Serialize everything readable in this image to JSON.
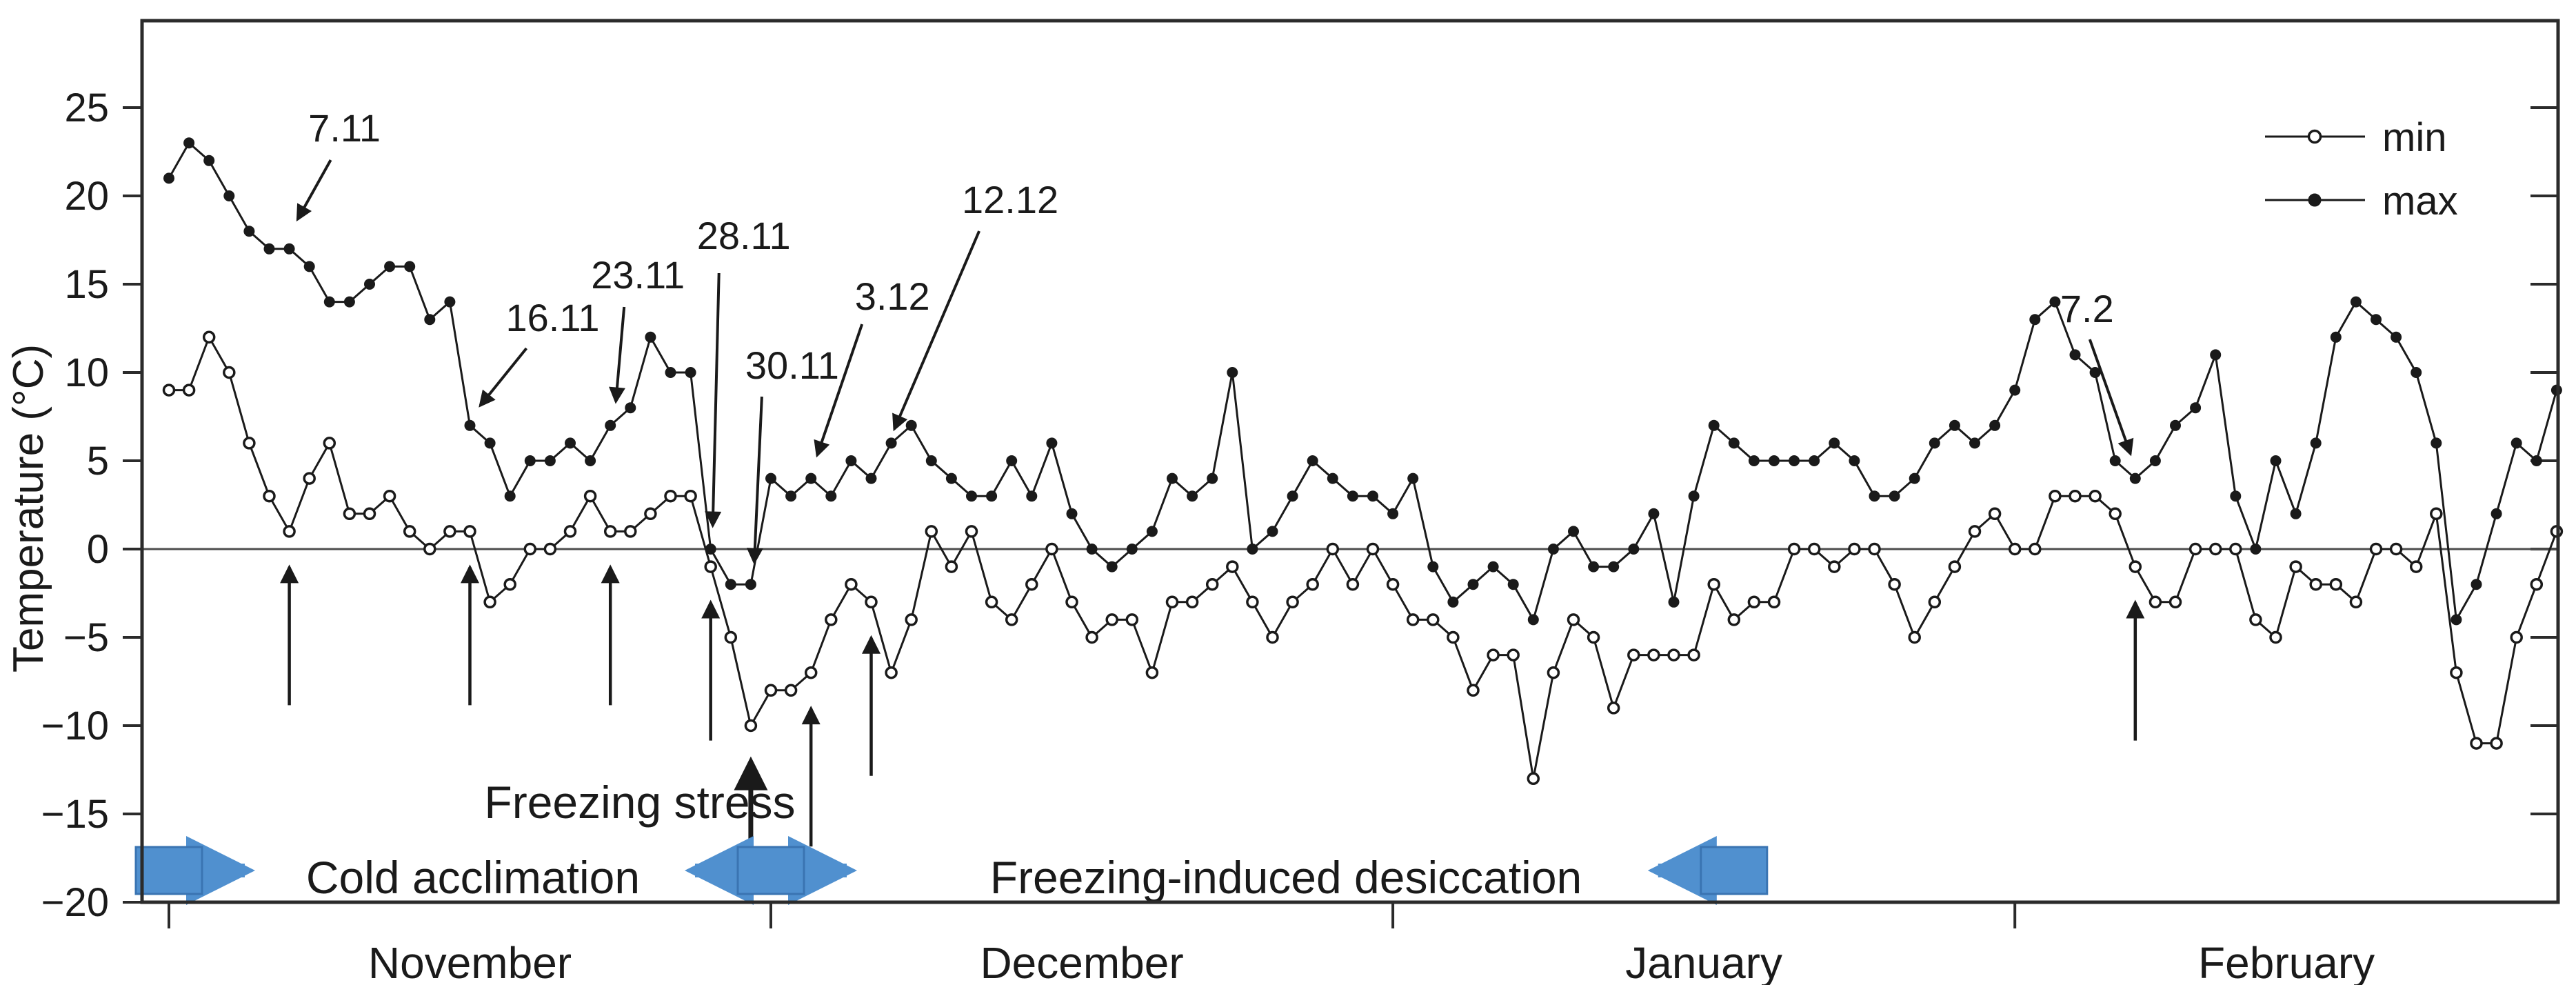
{
  "chart_data": {
    "type": "line",
    "title": "",
    "ylabel": "Temperature (°C)",
    "ylim": [
      -20,
      30
    ],
    "yticks": [
      25,
      20,
      15,
      10,
      5,
      0,
      -5,
      -10,
      -15,
      -20
    ],
    "zero_line": 0,
    "grid": "off",
    "x_months": [
      "November",
      "December",
      "January",
      "February"
    ],
    "month_lengths": [
      30,
      31,
      31,
      28
    ],
    "legend": {
      "position": "top-right",
      "items": [
        {
          "label": "min",
          "marker": "open-circle"
        },
        {
          "label": "max",
          "marker": "filled-circle"
        }
      ]
    },
    "series": [
      {
        "name": "min",
        "marker": "open-circle",
        "color": "#1a1a1a",
        "values": [
          9,
          9,
          12,
          10,
          6,
          3,
          1,
          4,
          6,
          2,
          2,
          3,
          1,
          0,
          1,
          1,
          -3,
          -2,
          0,
          0,
          1,
          3,
          1,
          1,
          2,
          3,
          3,
          -1,
          -5,
          -10,
          -8,
          -8,
          -7,
          -4,
          -2,
          -3,
          -7,
          -4,
          1,
          -1,
          1,
          -3,
          -4,
          -2,
          0,
          -3,
          -5,
          -4,
          -4,
          -7,
          -3,
          -3,
          -2,
          -1,
          -3,
          -5,
          -3,
          -2,
          0,
          -2,
          0,
          -2,
          -4,
          -4,
          -5,
          -8,
          -6,
          -6,
          -13,
          -7,
          -4,
          -5,
          -9,
          -6,
          -6,
          -6,
          -6,
          -2,
          -4,
          -3,
          -3,
          0,
          0,
          -1,
          0,
          0,
          -2,
          -5,
          -3,
          -1,
          1,
          2,
          0,
          0,
          3,
          3,
          3,
          2,
          -1,
          -3,
          -3,
          0,
          0,
          0,
          -4,
          -5,
          -1,
          -2,
          -2,
          -3,
          0,
          0,
          -1,
          2,
          -7,
          -11,
          -11,
          -5,
          -2,
          1
        ]
      },
      {
        "name": "max",
        "marker": "filled-circle",
        "color": "#1a1a1a",
        "values": [
          21,
          23,
          22,
          20,
          18,
          17,
          17,
          16,
          14,
          14,
          15,
          16,
          16,
          13,
          14,
          7,
          6,
          3,
          5,
          5,
          6,
          5,
          7,
          8,
          12,
          10,
          10,
          0,
          -2,
          -2,
          4,
          3,
          4,
          3,
          5,
          4,
          6,
          7,
          5,
          4,
          3,
          3,
          5,
          3,
          6,
          2,
          0,
          -1,
          0,
          1,
          4,
          3,
          4,
          10,
          0,
          1,
          3,
          5,
          4,
          3,
          3,
          2,
          4,
          -1,
          -3,
          -2,
          -1,
          -2,
          -4,
          0,
          1,
          -1,
          -1,
          0,
          2,
          -3,
          3,
          7,
          6,
          5,
          5,
          5,
          5,
          6,
          5,
          3,
          3,
          4,
          6,
          7,
          6,
          7,
          9,
          13,
          14,
          11,
          10,
          5,
          4,
          5,
          7,
          8,
          11,
          3,
          0,
          5,
          2,
          6,
          12,
          14,
          13,
          12,
          10,
          6,
          -4,
          -2,
          2,
          6,
          5,
          9
        ]
      }
    ],
    "date_annotations": [
      {
        "label": "7.11",
        "day_index": 6,
        "series": "max"
      },
      {
        "label": "16.11",
        "day_index": 15,
        "series": "max"
      },
      {
        "label": "23.11",
        "day_index": 22,
        "series": "max"
      },
      {
        "label": "28.11",
        "day_index": 27,
        "series": "max"
      },
      {
        "label": "30.11",
        "day_index": 29,
        "series": "max"
      },
      {
        "label": "3.12",
        "day_index": 32,
        "series": "max"
      },
      {
        "label": "12.12",
        "day_index": 41,
        "series": "max"
      },
      {
        "label": "7.2",
        "day_index": 98,
        "series": "max"
      }
    ],
    "sampling_up_arrows": {
      "series": "min",
      "day_indices": [
        6,
        15,
        22,
        27,
        32,
        35,
        98
      ]
    },
    "big_up_arrow": {
      "series": "min",
      "day_index": 29
    },
    "phases": [
      {
        "label": "Cold acclimation",
        "color": "#9CCB5C"
      },
      {
        "label": "Freezing stress",
        "color": "#76A3CE"
      },
      {
        "label": "Freezing-induced desiccation",
        "color": "#76A3CE"
      }
    ],
    "range_markers": [
      {
        "name": "start-of-acclimation-marker",
        "day_index": 0,
        "arrow_left": false,
        "arrow_right": true
      },
      {
        "name": "freezing-event-marker",
        "day_index": 30,
        "arrow_left": true,
        "arrow_right": true
      },
      {
        "name": "mid-january-marker",
        "day_index": 78,
        "arrow_left": true,
        "arrow_right": false
      }
    ],
    "marker_colors": {
      "box_fill": "#5090CF",
      "box_stroke": "#3A74B2"
    }
  }
}
